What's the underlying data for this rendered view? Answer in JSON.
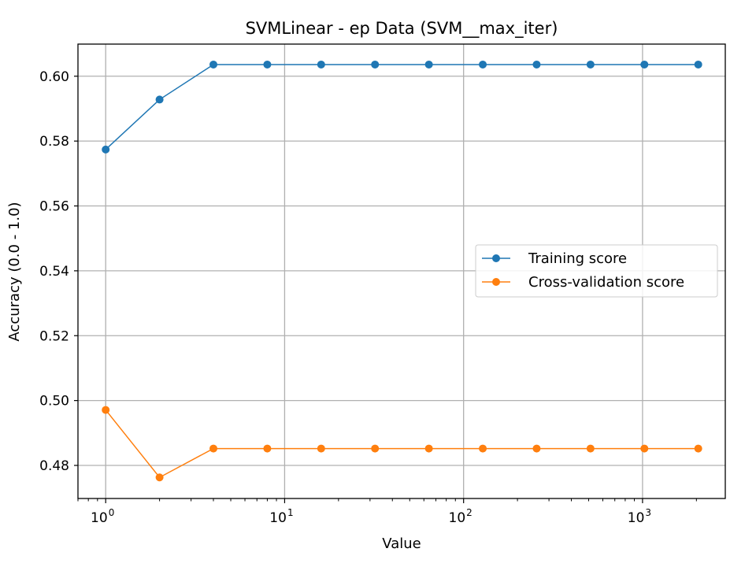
{
  "chart_data": {
    "type": "line",
    "title": "SVMLinear - ep Data (SVM__max_iter)",
    "xlabel": "Value",
    "ylabel": "Accuracy (0.0 - 1.0)",
    "xscale": "log",
    "xlim": [
      0.7,
      2900
    ],
    "ylim": [
      0.4698,
      0.6099
    ],
    "grid": true,
    "legend_position": "center-right",
    "x": [
      1,
      2,
      4,
      8,
      16,
      32,
      64,
      128,
      256,
      512,
      1024,
      2048
    ],
    "x_tick_labels": [
      {
        "base": "10",
        "exp": "0",
        "value": 1
      },
      {
        "base": "10",
        "exp": "1",
        "value": 10
      },
      {
        "base": "10",
        "exp": "2",
        "value": 100
      },
      {
        "base": "10",
        "exp": "3",
        "value": 1000
      }
    ],
    "y_ticks": [
      0.48,
      0.5,
      0.52,
      0.54,
      0.56,
      0.58,
      0.6
    ],
    "y_tick_labels": [
      "0.48",
      "0.50",
      "0.52",
      "0.54",
      "0.56",
      "0.58",
      "0.60"
    ],
    "series": [
      {
        "name": "Training score",
        "color": "#1f77b4",
        "values": [
          0.5774,
          0.5928,
          0.6036,
          0.6036,
          0.6036,
          0.6036,
          0.6036,
          0.6036,
          0.6036,
          0.6036,
          0.6036,
          0.6036
        ]
      },
      {
        "name": "Cross-validation score",
        "color": "#ff7f0e",
        "values": [
          0.4971,
          0.4763,
          0.4852,
          0.4852,
          0.4852,
          0.4852,
          0.4852,
          0.4852,
          0.4852,
          0.4852,
          0.4852,
          0.4852
        ]
      }
    ]
  }
}
